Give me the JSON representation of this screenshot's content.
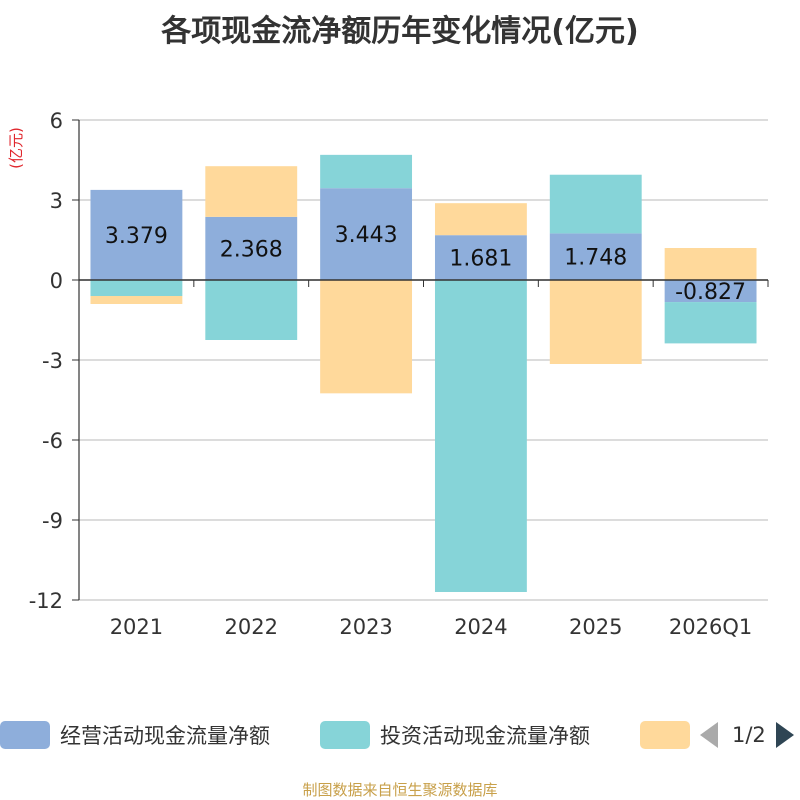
{
  "title": "各项现金流净额历年变化情况(亿元)",
  "source": "制图数据来自恒生聚源数据库",
  "chart_data": {
    "type": "bar",
    "stacked": true,
    "title": "各项现金流净额历年变化情况(亿元)",
    "ylabel": "(亿元)",
    "xlabel": "",
    "ylim": [
      -12,
      6
    ],
    "yticks": [
      -12,
      -9,
      -6,
      -3,
      0,
      3,
      6
    ],
    "grid": true,
    "legend_position": "bottom",
    "categories": [
      "2021",
      "2022",
      "2023",
      "2024",
      "2025",
      "2026Q1"
    ],
    "series": [
      {
        "name": "经营活动现金流量净额",
        "color": "#8eaedb",
        "values": [
          3.379,
          2.368,
          3.443,
          1.681,
          1.748,
          -0.827
        ],
        "labels": [
          "3.379",
          "2.368",
          "3.443",
          "1.681",
          "1.748",
          "-0.827"
        ]
      },
      {
        "name": "投资活动现金流量净额",
        "color": "#86d4d8",
        "values": [
          -0.6,
          -2.25,
          1.25,
          -11.7,
          2.2,
          -1.55
        ]
      },
      {
        "name": "",
        "color": "#ffd99b",
        "values": [
          -0.3,
          1.9,
          -4.25,
          1.2,
          -3.15,
          1.2
        ]
      }
    ]
  },
  "legend": {
    "items": [
      {
        "label": "经营活动现金流量净额",
        "color": "#8eaedb"
      },
      {
        "label": "投资活动现金流量净额",
        "color": "#86d4d8"
      },
      {
        "label": "",
        "color": "#ffd99b"
      }
    ],
    "page": "1/2"
  }
}
